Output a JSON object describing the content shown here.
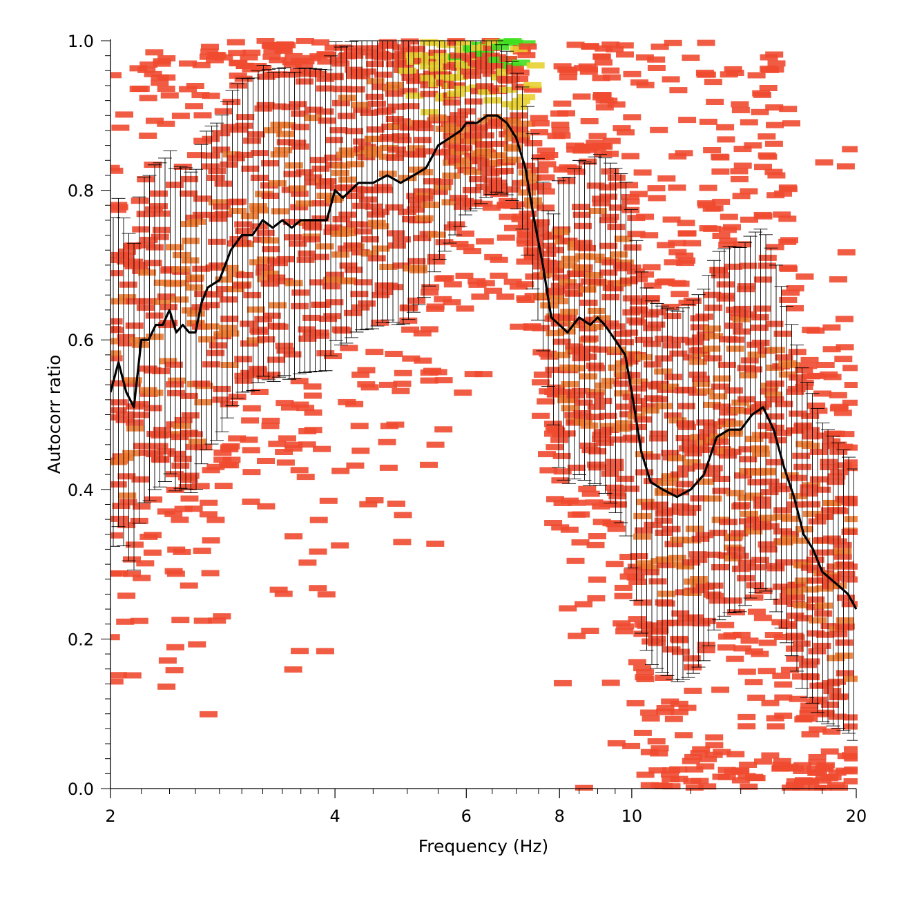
{
  "chart_data": {
    "type": "heatmap",
    "title": "",
    "xlabel": "Frequency (Hz)",
    "ylabel": "Autocorr ratio",
    "x_scale": "log",
    "xlim": [
      2,
      20
    ],
    "ylim": [
      0,
      1
    ],
    "x_tick_labels": [
      "2",
      "4",
      "6",
      "8",
      "10",
      "20"
    ],
    "x_tick_values": [
      2,
      4,
      6,
      8,
      10,
      20
    ],
    "y_tick_labels": [
      "0.0",
      "0.2",
      "0.4",
      "0.6",
      "0.8",
      "1.0"
    ],
    "y_tick_values": [
      0,
      0.2,
      0.4,
      0.6,
      0.8,
      1.0
    ],
    "grid": false,
    "legend": "none",
    "colors": {
      "heat_low": "#f04a30",
      "heat_mid": "#f07a30",
      "heat_high": "#e8d030",
      "heat_peak": "#40e020",
      "median_line": "#000000",
      "error_bars": "#000000"
    },
    "median_curve": {
      "x": [
        2.0,
        2.05,
        2.1,
        2.15,
        2.2,
        2.25,
        2.3,
        2.35,
        2.4,
        2.45,
        2.5,
        2.55,
        2.6,
        2.65,
        2.7,
        2.8,
        2.9,
        3.0,
        3.1,
        3.2,
        3.3,
        3.4,
        3.5,
        3.6,
        3.7,
        3.8,
        3.9,
        4.0,
        4.1,
        4.3,
        4.5,
        4.7,
        4.9,
        5.1,
        5.3,
        5.5,
        5.7,
        5.9,
        6.0,
        6.2,
        6.4,
        6.6,
        6.8,
        7.0,
        7.2,
        7.4,
        7.6,
        7.8,
        8.0,
        8.2,
        8.5,
        8.8,
        9.0,
        9.2,
        9.5,
        9.8,
        10.0,
        10.3,
        10.6,
        11.0,
        11.5,
        12.0,
        12.5,
        13.0,
        13.5,
        14.0,
        14.5,
        15.0,
        15.5,
        16.0,
        16.5,
        17.0,
        17.5,
        18.0,
        18.5,
        19.0,
        19.5,
        20.0
      ],
      "y": [
        0.53,
        0.57,
        0.53,
        0.51,
        0.6,
        0.6,
        0.62,
        0.62,
        0.64,
        0.61,
        0.62,
        0.61,
        0.61,
        0.65,
        0.67,
        0.68,
        0.72,
        0.74,
        0.74,
        0.76,
        0.75,
        0.76,
        0.75,
        0.76,
        0.76,
        0.76,
        0.76,
        0.8,
        0.79,
        0.81,
        0.81,
        0.82,
        0.81,
        0.82,
        0.83,
        0.86,
        0.87,
        0.88,
        0.89,
        0.89,
        0.9,
        0.9,
        0.89,
        0.87,
        0.83,
        0.76,
        0.7,
        0.63,
        0.62,
        0.61,
        0.63,
        0.62,
        0.63,
        0.62,
        0.6,
        0.58,
        0.53,
        0.45,
        0.41,
        0.4,
        0.39,
        0.4,
        0.42,
        0.47,
        0.48,
        0.48,
        0.5,
        0.51,
        0.48,
        0.43,
        0.39,
        0.34,
        0.32,
        0.29,
        0.28,
        0.27,
        0.26,
        0.24
      ]
    },
    "error_bar_halfwidth": {
      "x": [
        2,
        3,
        4,
        5,
        6,
        7,
        7.8,
        8,
        9,
        10,
        12,
        15,
        18,
        20
      ],
      "y": [
        0.22,
        0.21,
        0.2,
        0.19,
        0.12,
        0.09,
        0.12,
        0.2,
        0.22,
        0.24,
        0.25,
        0.24,
        0.2,
        0.18
      ]
    }
  }
}
